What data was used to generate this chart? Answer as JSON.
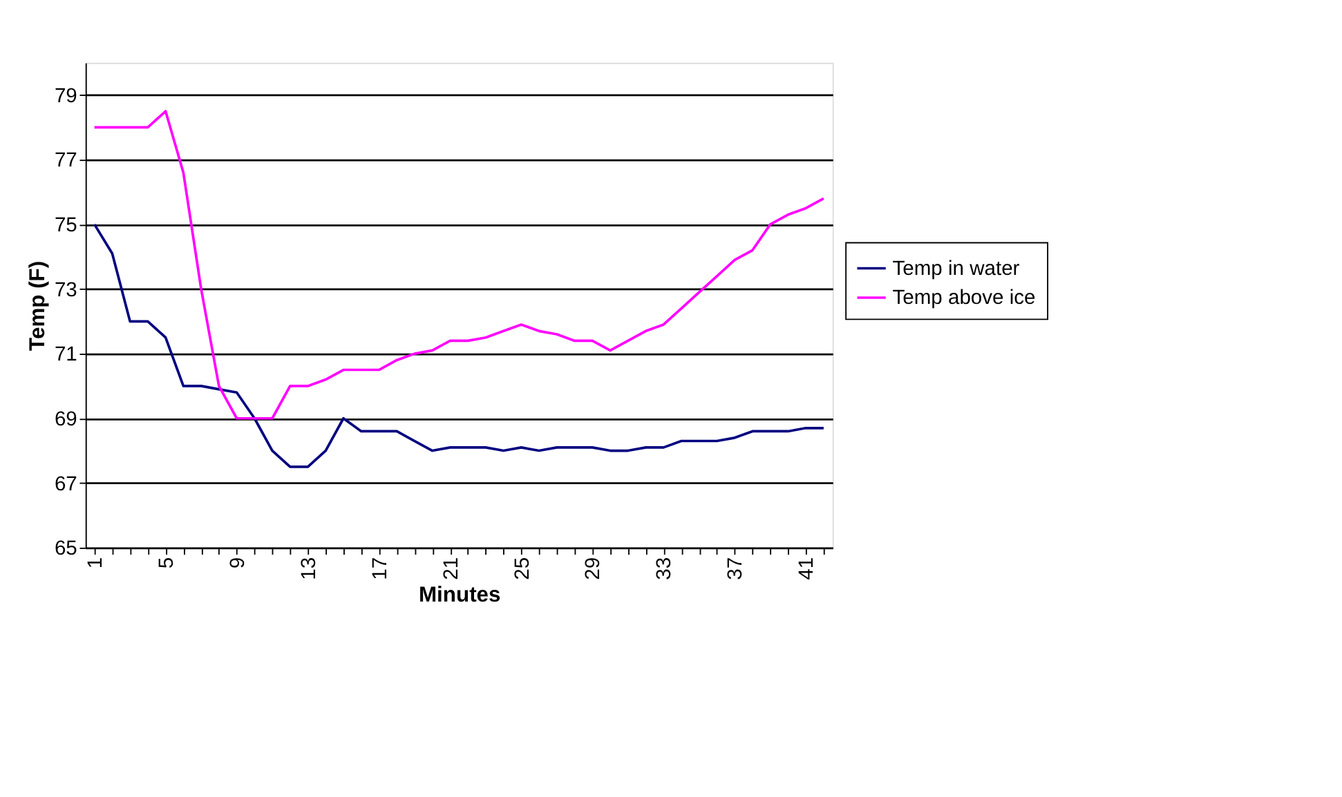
{
  "chart_data": {
    "type": "line",
    "xlabel": "Minutes",
    "ylabel": "Temp (F)",
    "categories": [
      "1",
      null,
      null,
      null,
      "5",
      null,
      null,
      null,
      "9",
      null,
      null,
      null,
      "13",
      null,
      null,
      null,
      "17",
      null,
      null,
      null,
      "21",
      null,
      null,
      null,
      "25",
      null,
      null,
      null,
      "29",
      null,
      null,
      null,
      "33",
      null,
      null,
      null,
      "37",
      null,
      null,
      null,
      "41",
      null
    ],
    "series": [
      {
        "name": "Temp in water",
        "color": "#000080",
        "values": [
          75,
          74.1,
          72,
          72,
          71.5,
          70,
          70,
          69.9,
          69.8,
          69,
          68,
          67.5,
          67.5,
          68,
          69,
          68.6,
          68.6,
          68.6,
          68.3,
          68,
          68.1,
          68.1,
          68.1,
          68,
          68.1,
          68,
          68.1,
          68.1,
          68.1,
          68,
          68,
          68.1,
          68.1,
          68.3,
          68.3,
          68.3,
          68.4,
          68.6,
          68.6,
          68.6,
          68.7,
          68.7
        ]
      },
      {
        "name": "Temp above ice",
        "color": "#ff00ff",
        "values": [
          78,
          78,
          78,
          78,
          78.5,
          76.6,
          73,
          70,
          69,
          69,
          69,
          70,
          70,
          70.2,
          70.5,
          70.5,
          70.5,
          70.8,
          71,
          71.1,
          71.4,
          71.4,
          71.5,
          71.7,
          71.9,
          71.7,
          71.6,
          71.4,
          71.4,
          71.1,
          71.4,
          71.7,
          71.9,
          72.4,
          72.9,
          73.4,
          73.9,
          74.2,
          75,
          75.3,
          75.5,
          75.8
        ]
      }
    ],
    "ylim": [
      65,
      80
    ],
    "yticks": [
      65,
      67,
      69,
      71,
      73,
      75,
      77,
      79
    ],
    "grid": "y",
    "legend": "right",
    "marker": "none",
    "line_style": "solid"
  }
}
